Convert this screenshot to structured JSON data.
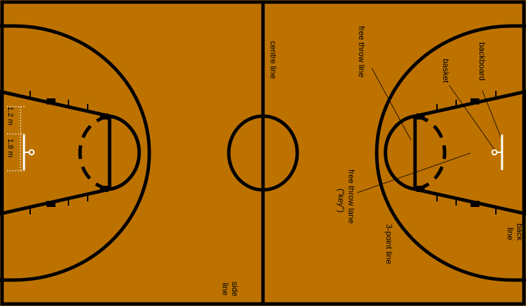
{
  "colors": {
    "court": "#bd7200",
    "lines": "#000000",
    "hoop": "#ffffff"
  },
  "labels": {
    "centre_line": "centre line",
    "free_throw_line": "free throw line",
    "basket": "basket",
    "backboard": "backboard",
    "free_throw_lane_1": "free throw lane",
    "free_throw_lane_2": "(\"key\")",
    "three_point_line": "3-point line",
    "back_line_1": "back",
    "back_line_2": "line",
    "side_line_1": "side",
    "side_line_2": "line",
    "dim_top": "1.2 m",
    "dim_bottom": "1.8 m"
  },
  "icons": {
    "left_hoop": "basket-icon",
    "right_hoop": "basket-icon"
  }
}
